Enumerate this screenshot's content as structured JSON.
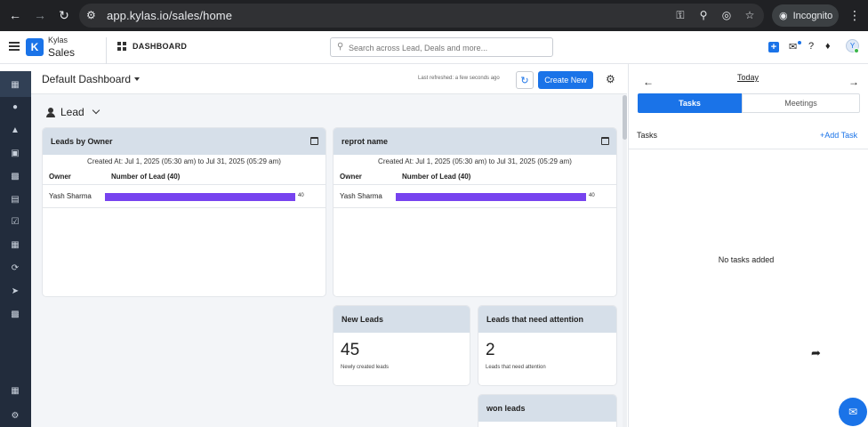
{
  "browser": {
    "url": "app.kylas.io/sales/home",
    "incognito_label": "Incognito"
  },
  "header": {
    "brand_small": "Kylas",
    "brand_big": "Sales",
    "section_label": "DASHBOARD",
    "search_placeholder": "Search across Lead, Deals and more...",
    "avatar_initial": "Y"
  },
  "sidebar": {
    "items": [
      "dashboard",
      "contacts",
      "deals",
      "leads",
      "companies",
      "reports",
      "tasks",
      "calendar",
      "workflows",
      "campaigns",
      "analytics",
      "apps",
      "settings"
    ]
  },
  "dashboard": {
    "title": "Default Dashboard",
    "last_refreshed": "Last refreshed: a few seconds ago",
    "create_label": "Create New",
    "entity_label": "Lead"
  },
  "cards": {
    "leads_by_owner": {
      "title": "Leads by Owner",
      "created_at": "Created At: Jul 1, 2025 (05:30 am) to Jul 31, 2025 (05:29 am)",
      "col_owner": "Owner",
      "col_count": "Number of Lead (40)",
      "row_owner": "Yash Sharma",
      "row_value": "40",
      "fraction": 1.0
    },
    "reprot_name": {
      "title": "reprot name",
      "created_at": "Created At: Jul 1, 2025 (05:30 am) to Jul 31, 2025 (05:29 am)",
      "col_owner": "Owner",
      "col_count": "Number of Lead (40)",
      "row_owner": "Yash Sharma",
      "row_value": "40",
      "fraction": 1.0
    },
    "new_leads": {
      "title": "New Leads",
      "value": "45",
      "subtitle": "Newly created leads"
    },
    "attention": {
      "title": "Leads that need attention",
      "value": "2",
      "subtitle": "Leads that need attention"
    },
    "won_leads": {
      "title": "won leads"
    }
  },
  "right_panel": {
    "date_label": "Today",
    "tab_tasks": "Tasks",
    "tab_meetings": "Meetings",
    "tasks_heading": "Tasks",
    "add_task_label": "Add Task",
    "empty_message": "No tasks added"
  },
  "colors": {
    "accent": "#1a73e8",
    "bar": "#7743ef",
    "sidebar_bg": "#222c3c"
  }
}
